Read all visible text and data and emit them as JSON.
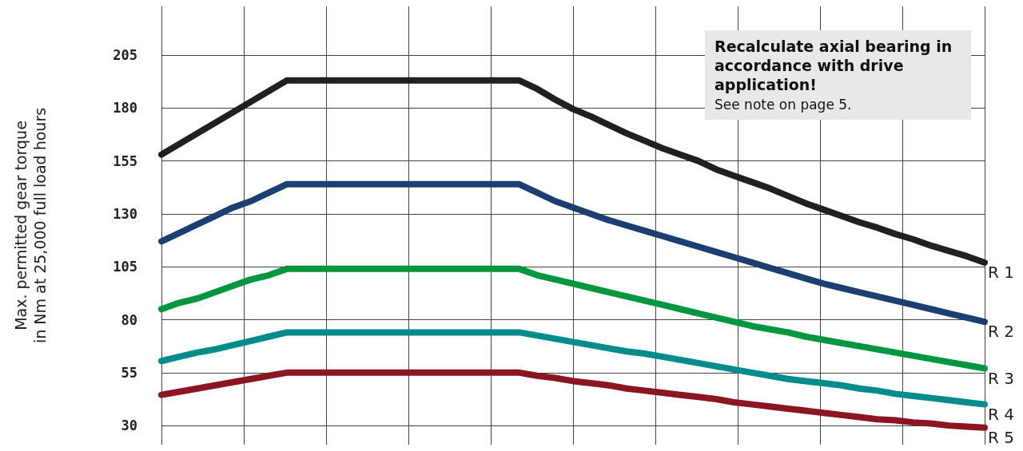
{
  "chart_data": {
    "type": "line",
    "ylabel": "Max. permitted gear torque\nin Nm at 25,000 full load hours",
    "annotations": [
      "Recalculate axial bearing in accordance with drive application!",
      "See note on page 5."
    ],
    "categories": [
      null,
      null,
      null,
      null,
      null,
      null,
      null,
      null,
      null,
      null,
      null,
      null,
      null,
      null,
      null,
      null,
      null,
      null,
      null,
      null,
      null,
      null,
      null,
      null,
      null,
      null,
      null,
      null,
      null,
      null,
      null,
      null,
      null,
      null,
      null,
      null,
      null,
      null,
      null,
      null,
      null,
      null,
      null,
      null,
      null,
      null,
      null
    ],
    "series": [
      {
        "name": "R 1",
        "color": "#231f20",
        "values": [
          158,
          163,
          168,
          173,
          178,
          183,
          188,
          193,
          193,
          193,
          193,
          193,
          193,
          193,
          193,
          193,
          193,
          193,
          193,
          193,
          193,
          189,
          184,
          179.5,
          176,
          172,
          168,
          164.5,
          161,
          158,
          155,
          151,
          148,
          145,
          142,
          138.5,
          135,
          132,
          129,
          126,
          123.5,
          120.5,
          118,
          115,
          112.5,
          110,
          107
        ]
      },
      {
        "name": "R 2",
        "color": "#1c3f73",
        "values": [
          117,
          121,
          125,
          129,
          133,
          136,
          140,
          144,
          144,
          144,
          144,
          144,
          144,
          144,
          144,
          144,
          144,
          144,
          144,
          144,
          144,
          140,
          136,
          133,
          130,
          127,
          124.5,
          122,
          119.5,
          117,
          114.5,
          112,
          109.5,
          107,
          104.5,
          102,
          99.5,
          97,
          95,
          93,
          91,
          89,
          87,
          85,
          83,
          81,
          79
        ]
      },
      {
        "name": "R 3",
        "color": "#009640",
        "values": [
          85,
          88,
          90,
          93,
          96,
          99,
          101,
          104,
          104,
          104,
          104,
          104,
          104,
          104,
          104,
          104,
          104,
          104,
          104,
          104,
          104,
          101,
          99,
          97,
          95,
          93,
          91,
          89,
          87,
          85,
          83,
          81,
          79,
          77,
          75.5,
          74,
          72,
          70.5,
          69,
          67.5,
          66,
          64.5,
          63,
          61.5,
          60,
          58.5,
          57
        ]
      },
      {
        "name": "R 4",
        "color": "#008c8c",
        "values": [
          60.5,
          62.5,
          64.5,
          66,
          68,
          70,
          72,
          74,
          74,
          74,
          74,
          74,
          74,
          74,
          74,
          74,
          74,
          74,
          74,
          74,
          74,
          72.5,
          71,
          69.5,
          68,
          66.5,
          65,
          64,
          62.5,
          61,
          59.5,
          58,
          56.5,
          55,
          53.5,
          52,
          51,
          50,
          49,
          47.5,
          46.5,
          45,
          44,
          43,
          42,
          41,
          40
        ]
      },
      {
        "name": "R 5",
        "color": "#8b1520",
        "values": [
          44.5,
          46,
          47.5,
          49,
          50.5,
          52,
          53.5,
          55,
          55,
          55,
          55,
          55,
          55,
          55,
          55,
          55,
          55,
          55,
          55,
          55,
          55,
          53.5,
          52.5,
          51,
          50,
          49,
          47.5,
          46.5,
          45.5,
          44.5,
          43.5,
          42.5,
          41,
          40,
          39,
          38,
          37,
          36,
          35,
          34,
          33,
          32.5,
          31.5,
          31,
          30,
          29.5,
          29
        ]
      }
    ],
    "ylim": [
      21,
      228
    ],
    "yticks": [
      30,
      55,
      80,
      105,
      130,
      155,
      180,
      205
    ],
    "grid": true,
    "legend": false,
    "tick_labels": "y",
    "line_style": "solid"
  }
}
